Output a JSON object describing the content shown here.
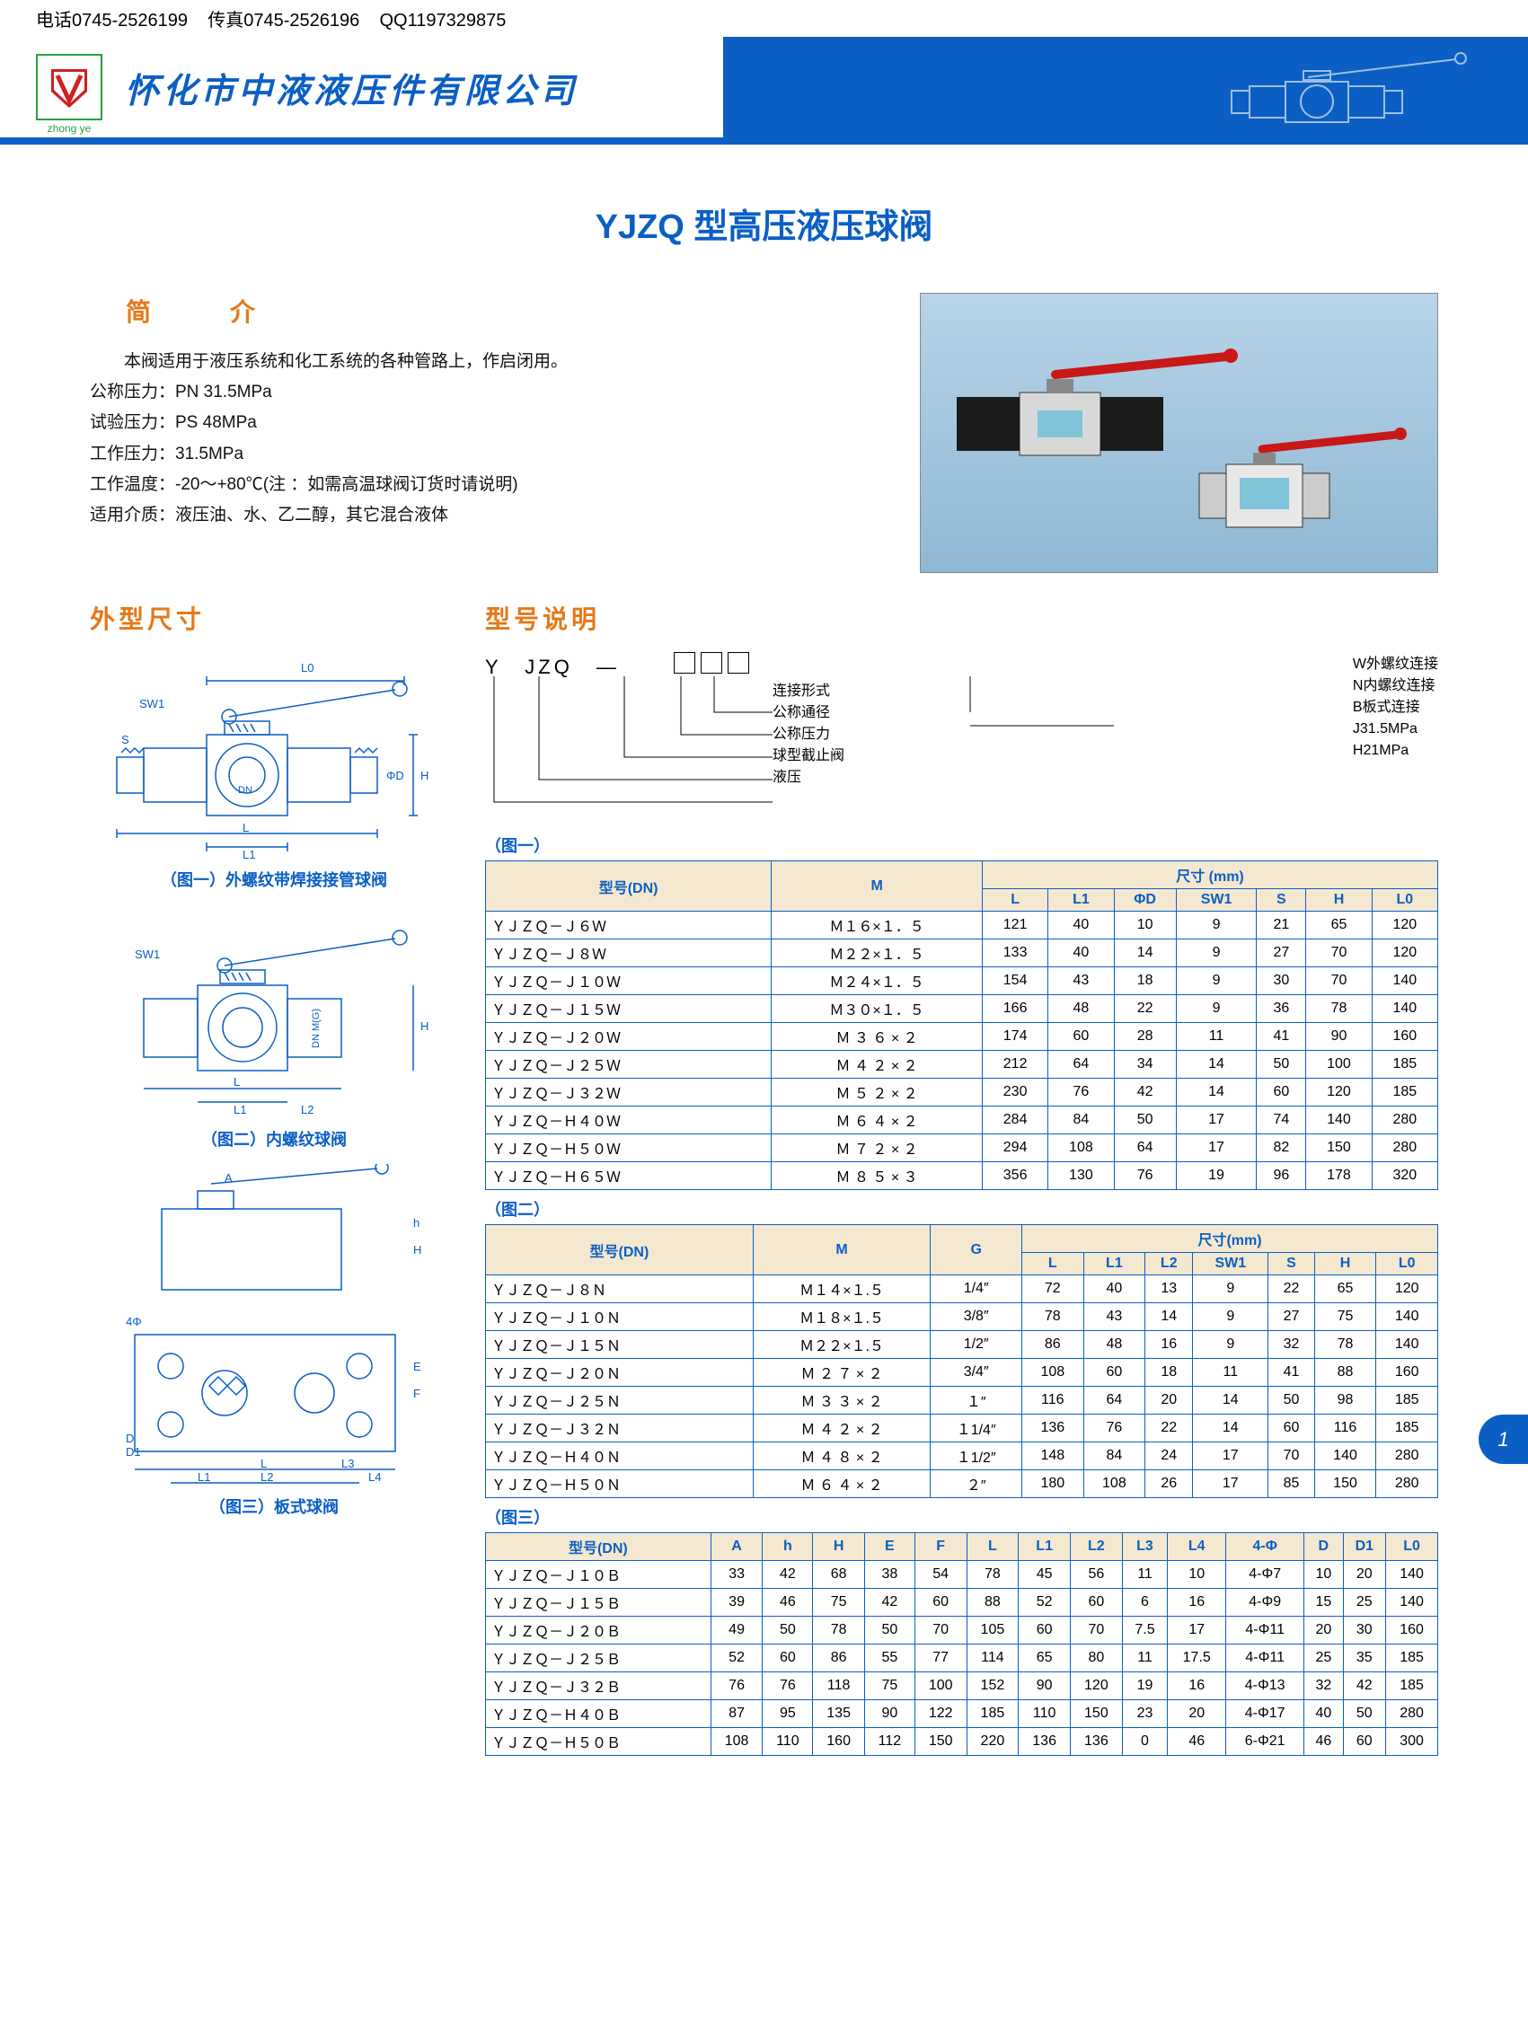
{
  "contact": {
    "phone": "电话0745-2526199",
    "fax": "传真0745-2526196",
    "qq": "QQ1197329875"
  },
  "company_name": "怀化市中液液压件有限公司",
  "logo_text": "zhong ye",
  "page_title": "YJZQ 型高压液压球阀",
  "intro_heading": "简　介",
  "intro_lines": [
    "本阀适用于液压系统和化工系统的各种管路上，作启闭用。",
    "公称压力：PN 31.5MPa",
    "试验压力：PS 48MPa",
    "工作压力：31.5MPa",
    "工作温度：-20～+80℃(注 ：如需高温球阀订货时请说明)",
    "适用介质：液压油、水、乙二醇，其它混合液体"
  ],
  "dims_heading": "外型尺寸",
  "model_heading": "型号说明",
  "model_code": "Y　JZQ　—",
  "model_right": [
    "W外螺纹连接",
    "N内螺纹连接",
    "B板式连接",
    "J31.5MPa",
    "H21MPa"
  ],
  "model_left": [
    "连接形式",
    "公称通径",
    "公称压力",
    "球型截止阀",
    "液压"
  ],
  "diag_captions": [
    "（图一）外螺纹带焊接接管球阀",
    "（图二）内螺纹球阀",
    "（图三）板式球阀"
  ],
  "table1": {
    "label": "（图一）",
    "head1": [
      "型号(DN)",
      "M",
      "尺寸 (mm)"
    ],
    "head2": [
      "L",
      "L1",
      "ΦD",
      "SW1",
      "S",
      "H",
      "L0"
    ],
    "rows": [
      [
        "ＹＪＺＱ－Ｊ６Ｗ",
        "Ｍ１６×１．５",
        "121",
        "40",
        "10",
        "9",
        "21",
        "65",
        "120"
      ],
      [
        "ＹＪＺＱ－Ｊ８Ｗ",
        "Ｍ２２×１．５",
        "133",
        "40",
        "14",
        "9",
        "27",
        "70",
        "120"
      ],
      [
        "ＹＪＺＱ－Ｊ１０Ｗ",
        "Ｍ２４×１．５",
        "154",
        "43",
        "18",
        "9",
        "30",
        "70",
        "140"
      ],
      [
        "ＹＪＺＱ－Ｊ１５Ｗ",
        "Ｍ３０×１．５",
        "166",
        "48",
        "22",
        "9",
        "36",
        "78",
        "140"
      ],
      [
        "ＹＪＺＱ－Ｊ２０Ｗ",
        "Ｍ ３ ６ × ２",
        "174",
        "60",
        "28",
        "11",
        "41",
        "90",
        "160"
      ],
      [
        "ＹＪＺＱ－Ｊ２５Ｗ",
        "Ｍ ４ ２ × ２",
        "212",
        "64",
        "34",
        "14",
        "50",
        "100",
        "185"
      ],
      [
        "ＹＪＺＱ－Ｊ３２Ｗ",
        "Ｍ ５ ２ × ２",
        "230",
        "76",
        "42",
        "14",
        "60",
        "120",
        "185"
      ],
      [
        "ＹＪＺＱ－Ｈ４０Ｗ",
        "Ｍ ６ ４ × ２",
        "284",
        "84",
        "50",
        "17",
        "74",
        "140",
        "280"
      ],
      [
        "ＹＪＺＱ－Ｈ５０Ｗ",
        "Ｍ ７ ２ × ２",
        "294",
        "108",
        "64",
        "17",
        "82",
        "150",
        "280"
      ],
      [
        "ＹＪＺＱ－Ｈ６５Ｗ",
        "Ｍ ８ ５ × ３",
        "356",
        "130",
        "76",
        "19",
        "96",
        "178",
        "320"
      ]
    ]
  },
  "table2": {
    "label": "（图二）",
    "head1": [
      "型号(DN)",
      "M",
      "G",
      "尺寸(mm)"
    ],
    "head2": [
      "L",
      "L1",
      "L2",
      "SW1",
      "S",
      "H",
      "L0"
    ],
    "rows": [
      [
        "ＹＪＺＱ－Ｊ８Ｎ",
        "Ｍ１４×１.５",
        "1/4″",
        "72",
        "40",
        "13",
        "9",
        "22",
        "65",
        "120"
      ],
      [
        "ＹＪＺＱ－Ｊ１０Ｎ",
        "Ｍ１８×１.５",
        "3/8″",
        "78",
        "43",
        "14",
        "9",
        "27",
        "75",
        "140"
      ],
      [
        "ＹＪＺＱ－Ｊ１５Ｎ",
        "Ｍ２２×１.５",
        "1/2″",
        "86",
        "48",
        "16",
        "9",
        "32",
        "78",
        "140"
      ],
      [
        "ＹＪＺＱ－Ｊ２０Ｎ",
        "Ｍ ２ ７ × ２",
        "3/4″",
        "108",
        "60",
        "18",
        "11",
        "41",
        "88",
        "160"
      ],
      [
        "ＹＪＺＱ－Ｊ２５Ｎ",
        "Ｍ ３ ３ × ２",
        "１″",
        "116",
        "64",
        "20",
        "14",
        "50",
        "98",
        "185"
      ],
      [
        "ＹＪＺＱ－Ｊ３２Ｎ",
        "Ｍ ４ ２ × ２",
        "１1/4″",
        "136",
        "76",
        "22",
        "14",
        "60",
        "116",
        "185"
      ],
      [
        "ＹＪＺＱ－Ｈ４０Ｎ",
        "Ｍ ４ ８ × ２",
        "１1/2″",
        "148",
        "84",
        "24",
        "17",
        "70",
        "140",
        "280"
      ],
      [
        "ＹＪＺＱ－Ｈ５０Ｎ",
        "Ｍ ６ ４ × ２",
        "２″",
        "180",
        "108",
        "26",
        "17",
        "85",
        "150",
        "280"
      ]
    ]
  },
  "table3": {
    "label": "（图三）",
    "head": [
      "型号(DN)",
      "A",
      "h",
      "H",
      "E",
      "F",
      "L",
      "L1",
      "L2",
      "L3",
      "L4",
      "4-Φ",
      "D",
      "D1",
      "L0"
    ],
    "rows": [
      [
        "ＹＪＺＱ－Ｊ１０Ｂ",
        "33",
        "42",
        "68",
        "38",
        "54",
        "78",
        "45",
        "56",
        "11",
        "10",
        "4-Φ7",
        "10",
        "20",
        "140"
      ],
      [
        "ＹＪＺＱ－Ｊ１５Ｂ",
        "39",
        "46",
        "75",
        "42",
        "60",
        "88",
        "52",
        "60",
        "6",
        "16",
        "4-Φ9",
        "15",
        "25",
        "140"
      ],
      [
        "ＹＪＺＱ－Ｊ２０Ｂ",
        "49",
        "50",
        "78",
        "50",
        "70",
        "105",
        "60",
        "70",
        "7.5",
        "17",
        "4-Φ11",
        "20",
        "30",
        "160"
      ],
      [
        "ＹＪＺＱ－Ｊ２５Ｂ",
        "52",
        "60",
        "86",
        "55",
        "77",
        "114",
        "65",
        "80",
        "11",
        "17.5",
        "4-Φ11",
        "25",
        "35",
        "185"
      ],
      [
        "ＹＪＺＱ－Ｊ３２Ｂ",
        "76",
        "76",
        "118",
        "75",
        "100",
        "152",
        "90",
        "120",
        "19",
        "16",
        "4-Φ13",
        "32",
        "42",
        "185"
      ],
      [
        "ＹＪＺＱ－Ｈ４０Ｂ",
        "87",
        "95",
        "135",
        "90",
        "122",
        "185",
        "110",
        "150",
        "23",
        "20",
        "4-Φ17",
        "40",
        "50",
        "280"
      ],
      [
        "ＹＪＺＱ－Ｈ５０Ｂ",
        "108",
        "110",
        "160",
        "112",
        "150",
        "220",
        "136",
        "136",
        "0",
        "46",
        "6-Φ21",
        "46",
        "60",
        "300"
      ]
    ]
  },
  "page_number": "1",
  "colors": {
    "blue": "#0b5fc4",
    "orange": "#e67817",
    "th_bg": "#f5e8d0"
  }
}
